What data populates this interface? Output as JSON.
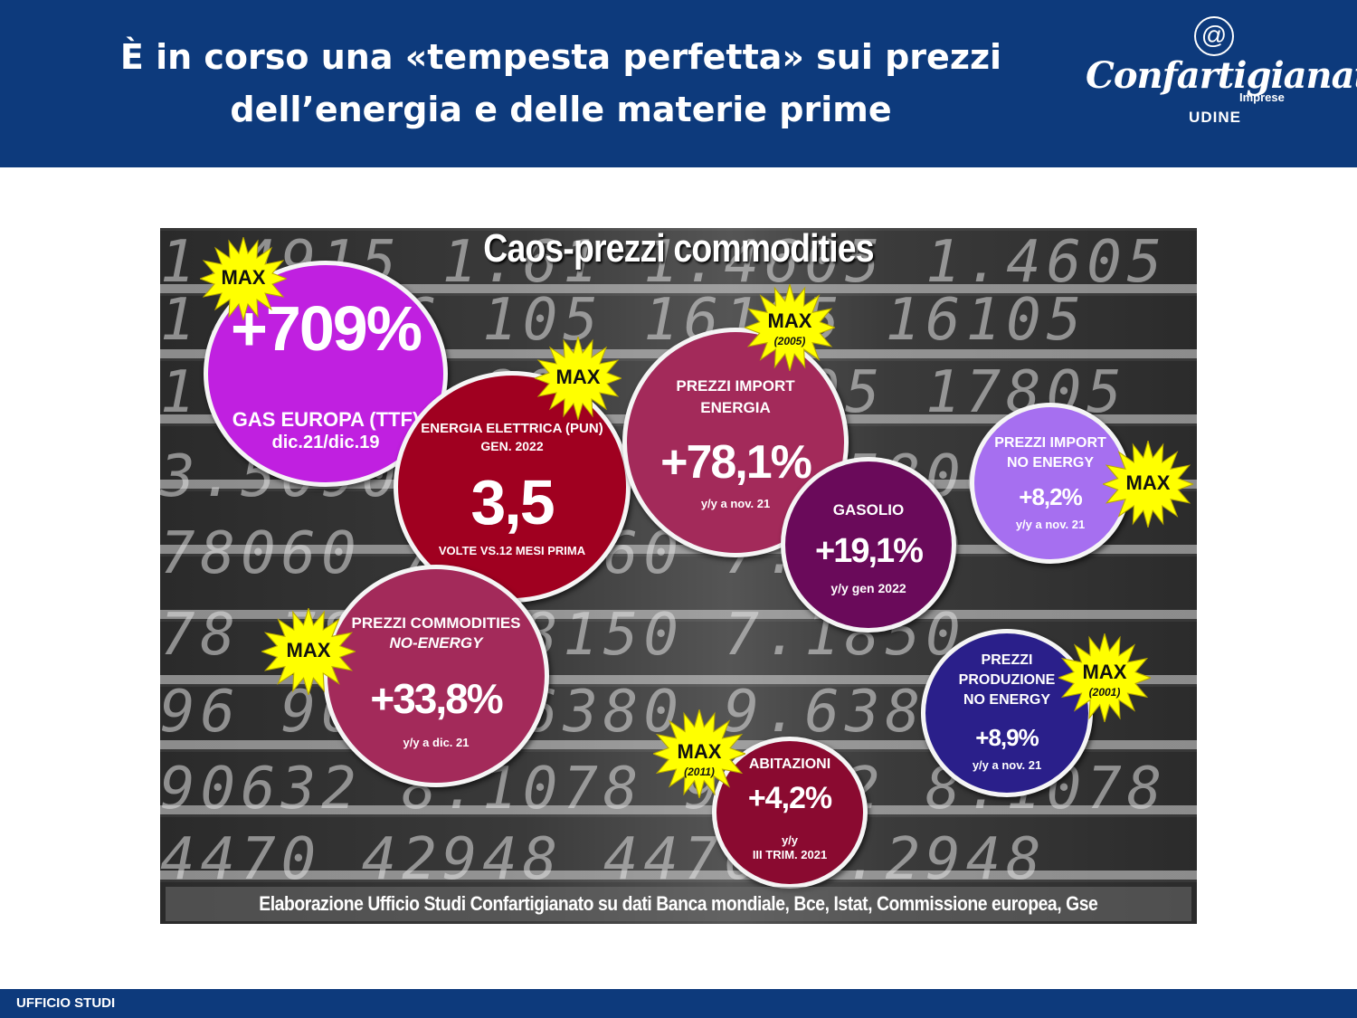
{
  "header": {
    "title_line1": "È in corso una «tempesta perfetta» sui prezzi",
    "title_line2": "dell’energia e delle materie prime",
    "logo_name": "Confartigianato",
    "logo_sub": "Imprese",
    "logo_city": "UDINE"
  },
  "panel": {
    "title": "Caos-prezzi commodities",
    "credit": "Elaborazione Ufficio Studi Confartigianato su dati Banca mondiale, Bce, Istat, Commissione europea, Gse",
    "digit_rows": [
      "1.4915 1.61 1.4605 1.4605",
      "1.6 1.6 105 16105 16105",
      "1.1 1.1 805 1.7805 17805",
      "3.5090 3.5 890 3.5800",
      "78060 7.78060 7.1800",
      "78 7850 78150 7.1850",
      "96 9630 96380 9.6380",
      "90632 8.1078 90632 8.1078",
      "4470 42948 4470 4.2948"
    ],
    "colors": {
      "magenta": "#c020e0",
      "crimson": "#a00020",
      "rose": "#a32a5a",
      "plum": "#6a0a5a",
      "violet": "#a66ff0",
      "indigo": "#2a1f8a",
      "maroon": "#8a0a30",
      "star": "#ffff00"
    }
  },
  "bubbles": {
    "gas": {
      "value": "+709%",
      "line1": "GAS EUROPA (TTF)",
      "line2": "dic.21/dic.19"
    },
    "energia": {
      "line1": "ENERGIA ELETTRICA (PUN)",
      "line2": "GEN. 2022",
      "value": "3,5",
      "line3": "VOLTE VS.12 MESI PRIMA"
    },
    "import_energia": {
      "line1": "PREZZI IMPORT",
      "line2": "ENERGIA",
      "value": "+78,1%",
      "line3": "y/y  a nov. 21"
    },
    "gasolio": {
      "line1": "GASOLIO",
      "value": "+19,1%",
      "line2": "y/y  gen 2022"
    },
    "import_noenergy": {
      "line1": "PREZZI IMPORT",
      "line2": "NO ENERGY",
      "value": "+8,2%",
      "line3": "y/y  a nov. 21"
    },
    "commodities": {
      "line1": "PREZZI COMMODITIES",
      "line2": "NO-ENERGY",
      "value": "+33,8%",
      "line3": "y/y  a dic. 21"
    },
    "produzione": {
      "line1": "PREZZI",
      "line2": "PRODUZIONE",
      "line3": "NO ENERGY",
      "value": "+8,9%",
      "line4": "y/y  a nov. 21"
    },
    "abitazioni": {
      "line1": "ABITAZIONI",
      "value": "+4,2%",
      "line2": "y/y",
      "line3": "III TRIM. 2021"
    }
  },
  "stars": {
    "max_label": "MAX",
    "year_2005": "(2005)",
    "year_2001": "(2001)",
    "year_2011": "(2011)"
  },
  "footer": {
    "label": "UFFICIO STUDI"
  }
}
